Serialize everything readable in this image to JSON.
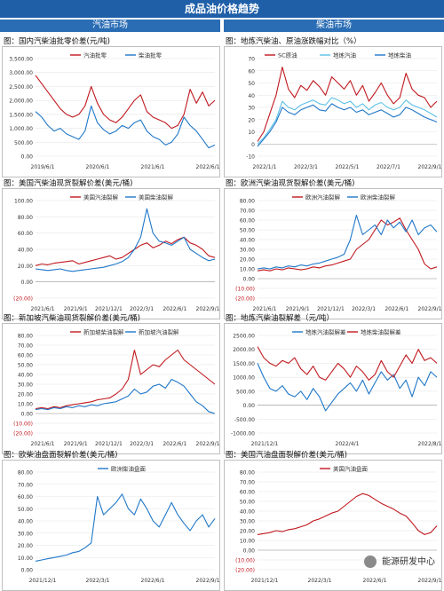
{
  "header": {
    "title": "成品油价格趋势",
    "left_section": "汽油市场",
    "right_section": "柴油市场"
  },
  "footer": {
    "watermark": "能源研发中心",
    "icon": "wechat-icon"
  },
  "chart_data": [
    {
      "id": "c1",
      "type": "line",
      "title": "图：国内汽柴油批零价差(元/吨)",
      "yticks": [
        "3,500.00",
        "3,000.00",
        "2,500.00",
        "2,000.00",
        "1,500.00",
        "1,000.00",
        "500.00",
        "0.00"
      ],
      "ylim": [
        0,
        3500
      ],
      "xticks": [
        "2019/6/1",
        "2020/6/1",
        "2021/6/1",
        "2022/6/1"
      ],
      "series": [
        {
          "name": "汽油批零",
          "color": "#c0181e",
          "values": [
            2900,
            2600,
            2300,
            2000,
            1700,
            1500,
            1400,
            1500,
            1800,
            2500,
            1900,
            1500,
            1300,
            1200,
            1400,
            1700,
            2000,
            2200,
            1600,
            1400,
            1300,
            1200,
            1000,
            1100,
            1500,
            2400,
            1900,
            2300,
            1800,
            2000
          ]
        },
        {
          "name": "柴油批零",
          "color": "#1f77c8",
          "values": [
            1600,
            1400,
            1100,
            900,
            1000,
            800,
            700,
            600,
            900,
            1800,
            1200,
            950,
            800,
            900,
            1100,
            1000,
            1200,
            1300,
            900,
            700,
            600,
            400,
            500,
            800,
            1400,
            1100,
            900,
            600,
            300,
            400
          ]
        }
      ]
    },
    {
      "id": "c2",
      "type": "line",
      "title": "图：地炼汽柴油、原油涨跌幅对比（%）",
      "yticks": [
        "70",
        "60",
        "50",
        "40",
        "30",
        "20",
        "10",
        "0",
        "-10"
      ],
      "ylim": [
        -10,
        70
      ],
      "xticks": [
        "2022/1/1",
        "2022/3/1",
        "2022/5/1",
        "2022/7/1",
        "2022/9/1"
      ],
      "series": [
        {
          "name": "SC原油",
          "color": "#c0181e",
          "values": [
            2,
            10,
            25,
            40,
            63,
            45,
            38,
            48,
            44,
            52,
            47,
            40,
            55,
            50,
            45,
            52,
            40,
            48,
            35,
            42,
            50,
            40,
            33,
            38,
            58,
            45,
            40,
            38,
            30,
            35
          ]
        },
        {
          "name": "地炼汽油",
          "color": "#5bc0e8",
          "values": [
            0,
            5,
            12,
            20,
            35,
            30,
            28,
            32,
            34,
            36,
            33,
            32,
            38,
            36,
            33,
            35,
            30,
            33,
            28,
            32,
            34,
            30,
            28,
            30,
            36,
            32,
            30,
            28,
            25,
            22
          ]
        },
        {
          "name": "地炼柴油",
          "color": "#1f77c8",
          "values": [
            -2,
            4,
            10,
            18,
            30,
            26,
            24,
            28,
            30,
            32,
            28,
            27,
            33,
            30,
            28,
            30,
            26,
            28,
            24,
            26,
            28,
            25,
            22,
            24,
            30,
            28,
            25,
            22,
            20,
            18
          ]
        }
      ]
    },
    {
      "id": "c3",
      "type": "line",
      "title": "图：美国汽柴油现货裂解价差(美元/桶)",
      "yticks": [
        "100.00",
        "80.00",
        "60.00",
        "40.00",
        "20.00",
        "0.00",
        "(20.00)"
      ],
      "ylim": [
        -20,
        100
      ],
      "xticks": [
        "2021/6/1",
        "2021/9/1",
        "2021/12/1",
        "2022/3/1",
        "2022/6/1",
        "2022/9/1"
      ],
      "series": [
        {
          "name": "美国汽油裂解",
          "color": "#c0181e",
          "values": [
            20,
            22,
            21,
            23,
            24,
            25,
            26,
            22,
            24,
            26,
            28,
            30,
            32,
            28,
            30,
            35,
            40,
            45,
            48,
            42,
            45,
            50,
            47,
            52,
            55,
            48,
            45,
            40,
            32,
            30
          ]
        },
        {
          "name": "美国柴油裂解",
          "color": "#1f77c8",
          "values": [
            16,
            15,
            14,
            15,
            16,
            14,
            13,
            14,
            15,
            16,
            17,
            18,
            20,
            22,
            25,
            30,
            40,
            55,
            90,
            60,
            50,
            48,
            45,
            50,
            55,
            40,
            35,
            30,
            26,
            28
          ]
        }
      ]
    },
    {
      "id": "c4",
      "type": "line",
      "title": "图：欧洲汽柴油现货裂解价差(美元/桶)",
      "yticks": [
        "80.00",
        "70.00",
        "60.00",
        "50.00",
        "40.00",
        "30.00",
        "20.00",
        "10.00",
        "0.00",
        "(10.00)",
        "(20.00)"
      ],
      "ylim": [
        -20,
        80
      ],
      "xticks": [
        "2021/6/1",
        "2021/9/1",
        "2021/12/1",
        "2022/3/1",
        "2022/6/1",
        "2022/9/1"
      ],
      "series": [
        {
          "name": "欧洲汽油裂解",
          "color": "#c0181e",
          "values": [
            8,
            9,
            8,
            10,
            9,
            11,
            10,
            9,
            10,
            12,
            11,
            13,
            14,
            16,
            18,
            20,
            30,
            35,
            40,
            50,
            60,
            55,
            58,
            62,
            50,
            40,
            30,
            15,
            10,
            12
          ]
        },
        {
          "name": "欧洲柴油裂解",
          "color": "#1f77c8",
          "values": [
            10,
            11,
            10,
            12,
            11,
            13,
            12,
            14,
            13,
            15,
            16,
            18,
            20,
            22,
            25,
            40,
            65,
            45,
            50,
            55,
            45,
            60,
            52,
            58,
            48,
            60,
            45,
            52,
            55,
            48
          ]
        }
      ]
    },
    {
      "id": "c5",
      "type": "line",
      "title": "图：新加坡汽柴油现货裂解价差(美元/桶)",
      "yticks": [
        "80.00",
        "70.00",
        "60.00",
        "50.00",
        "40.00",
        "30.00",
        "20.00",
        "10.00",
        "0.00",
        "(10.00)",
        "(20.00)"
      ],
      "ylim": [
        -20,
        80
      ],
      "xticks": [
        "2021/6/1",
        "2021/9/1",
        "2021/12/1",
        "2022/3/1",
        "2022/6/1",
        "2022/9/1"
      ],
      "series": [
        {
          "name": "新加坡柴油裂解",
          "color": "#c0181e",
          "values": [
            5,
            6,
            5,
            7,
            6,
            8,
            9,
            10,
            11,
            12,
            14,
            15,
            16,
            20,
            25,
            35,
            65,
            40,
            45,
            50,
            48,
            55,
            60,
            65,
            55,
            50,
            45,
            40,
            35,
            30
          ]
        },
        {
          "name": "新加坡汽油裂解",
          "color": "#1f77c8",
          "values": [
            4,
            5,
            4,
            6,
            5,
            7,
            6,
            8,
            7,
            9,
            8,
            10,
            11,
            12,
            15,
            18,
            25,
            20,
            22,
            28,
            30,
            26,
            35,
            32,
            28,
            20,
            12,
            8,
            2,
            0
          ]
        }
      ]
    },
    {
      "id": "c6",
      "type": "line",
      "title": "图：地炼汽柴油裂解差（元/吨）",
      "yticks": [
        "2500.00",
        "2000.00",
        "1500.00",
        "1000.00",
        "500.00",
        "0.00",
        "-500.00",
        "-1000.00"
      ],
      "ylim": [
        -1000,
        2500
      ],
      "xticks": [
        "2021/12/1",
        "2022/4/1",
        "2022/8/1"
      ],
      "series": [
        {
          "name": "地炼汽油裂解差",
          "color": "#1f77c8",
          "values": [
            1500,
            1000,
            600,
            500,
            700,
            400,
            300,
            500,
            200,
            600,
            300,
            -200,
            100,
            400,
            600,
            800,
            500,
            900,
            400,
            800,
            1200,
            900,
            1100,
            600,
            900,
            300,
            1000,
            700,
            1200,
            1000
          ]
        },
        {
          "name": "地炼柴油裂解差",
          "color": "#c0181e",
          "values": [
            2100,
            1700,
            1500,
            1400,
            1600,
            1500,
            1700,
            1300,
            1100,
            1400,
            1000,
            900,
            1200,
            1500,
            1300,
            1000,
            1400,
            1200,
            900,
            1100,
            1600,
            1200,
            1000,
            1400,
            1800,
            1500,
            2000,
            1600,
            1700,
            1500
          ]
        }
      ]
    },
    {
      "id": "c7",
      "type": "line",
      "title": "图：欧柴油盘面裂解价差(美元/桶)",
      "yticks": [
        "80.00",
        "70.00",
        "60.00",
        "50.00",
        "40.00",
        "30.00",
        "20.00",
        "10.00",
        "0.00"
      ],
      "ylim": [
        0,
        80
      ],
      "xticks": [
        "2021/12/1",
        "2022/3/1",
        "2022/6/1",
        "2022/9/1"
      ],
      "series": [
        {
          "name": "欧洲柴油盘面",
          "color": "#1f77c8",
          "values": [
            7,
            8,
            9,
            10,
            11,
            12,
            14,
            15,
            18,
            22,
            60,
            45,
            50,
            55,
            62,
            50,
            45,
            58,
            50,
            40,
            35,
            45,
            55,
            45,
            38,
            32,
            40,
            45,
            35,
            42
          ]
        }
      ]
    },
    {
      "id": "c8",
      "type": "line",
      "title": "图：美国汽油盘面裂解价差(美元/桶)",
      "yticks": [
        "80.00",
        "70.00",
        "60.00",
        "50.00",
        "40.00",
        "30.00",
        "20.00",
        "10.00",
        "0.00",
        "(10.00)",
        "(20.00)"
      ],
      "ylim": [
        -20,
        80
      ],
      "xticks": [
        "2021/12/1",
        "2022/3/1",
        "2022/6/1",
        "2022/9/1"
      ],
      "series": [
        {
          "name": "美国汽油盘面",
          "color": "#c0181e",
          "values": [
            16,
            17,
            18,
            20,
            19,
            21,
            22,
            24,
            26,
            30,
            32,
            35,
            38,
            40,
            45,
            50,
            55,
            58,
            56,
            52,
            48,
            45,
            42,
            38,
            35,
            28,
            20,
            16,
            18,
            25
          ]
        }
      ]
    }
  ]
}
